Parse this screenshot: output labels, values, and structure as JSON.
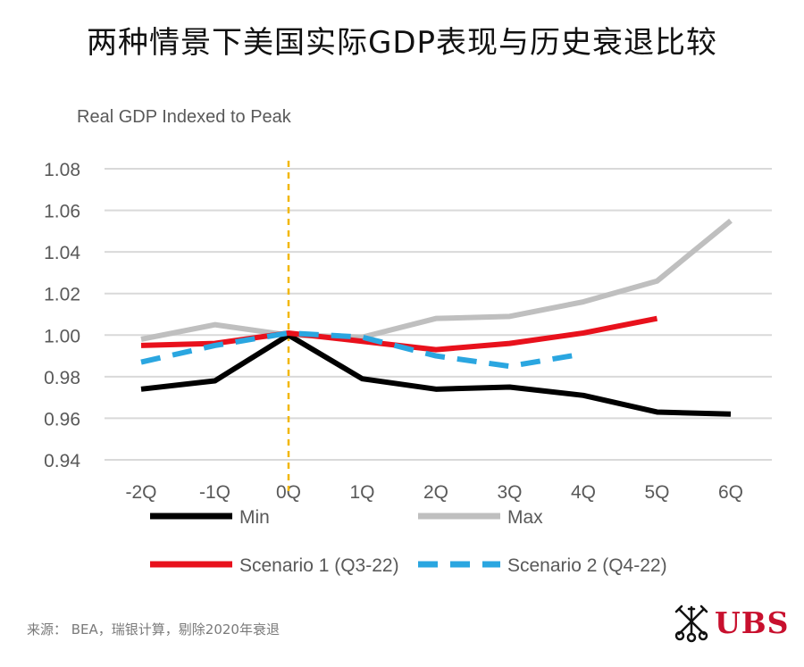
{
  "title": "两种情景下美国实际GDP表现与历史衰退比较",
  "source": "来源： BEA，瑞银计算，剔除2020年衰退",
  "logo": "UBS",
  "colors": {
    "min": "#000000",
    "max": "#bfbfbf",
    "scenario1": "#e8111c",
    "scenario2": "#2aa6e0",
    "peak_marker": "#f2b705",
    "grid": "#d9d9d9",
    "axis_text": "#595959",
    "brand": "#c8102e"
  },
  "chart_data": {
    "type": "line",
    "title": "",
    "ylabel": "Real GDP Indexed to Peak",
    "xlabel": "",
    "categories": [
      "-2Q",
      "-1Q",
      "0Q",
      "1Q",
      "2Q",
      "3Q",
      "4Q",
      "5Q",
      "6Q"
    ],
    "ylim": [
      0.94,
      1.08
    ],
    "yticks": [
      "1.08",
      "1.06",
      "1.04",
      "1.02",
      "1.00",
      "0.98",
      "0.96",
      "0.94"
    ],
    "grid": true,
    "peak_marker_category": "0Q",
    "legend_position": "bottom",
    "series": [
      {
        "key": "min",
        "name": "Min",
        "style": "solid",
        "values": [
          0.974,
          0.978,
          1.0,
          0.979,
          0.974,
          0.975,
          0.971,
          0.963,
          0.962
        ]
      },
      {
        "key": "max",
        "name": "Max",
        "style": "solid",
        "values": [
          0.998,
          1.005,
          1.0,
          0.999,
          1.008,
          1.009,
          1.016,
          1.026,
          1.055
        ]
      },
      {
        "key": "scenario1",
        "name": "Scenario 1 (Q3-22)",
        "style": "solid",
        "values": [
          0.995,
          0.996,
          1.001,
          0.997,
          0.993,
          0.996,
          1.001,
          1.008,
          null
        ]
      },
      {
        "key": "scenario2",
        "name": "Scenario 2 (Q4-22)",
        "style": "dashed",
        "values": [
          0.987,
          0.995,
          1.001,
          0.999,
          0.99,
          0.985,
          0.991,
          null,
          null
        ]
      }
    ]
  }
}
